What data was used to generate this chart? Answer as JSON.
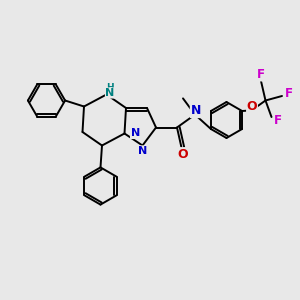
{
  "bg_color": "#e8e8e8",
  "bond_color": "#000000",
  "N_color": "#0000cc",
  "NH_color": "#008080",
  "O_color": "#cc0000",
  "F_color": "#cc00cc",
  "lw": 1.4,
  "fs": 7.5,
  "xlim": [
    0,
    10
  ],
  "ylim": [
    0,
    10
  ]
}
